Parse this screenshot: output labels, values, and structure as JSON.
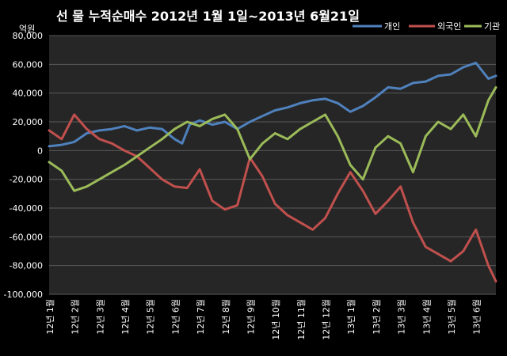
{
  "chart_data": {
    "type": "line",
    "title": "선 물 누적순매수 2012년 1월 1일~2013년 6월21일",
    "ylabel": "억원",
    "xlabel": "",
    "ylim": [
      -100000,
      80000
    ],
    "yticks": [
      "80,000",
      "60,000",
      "40,000",
      "20,000",
      "0",
      "-20,000",
      "-40,000",
      "-60,000",
      "-80,000",
      "-100,000"
    ],
    "yticks_values": [
      80000,
      60000,
      40000,
      20000,
      0,
      -20000,
      -40000,
      -60000,
      -80000,
      -100000
    ],
    "categories": [
      "12년 1월",
      "12년 2월",
      "12년 3월",
      "12년 4월",
      "12년 5월",
      "12년 6월",
      "12년 7월",
      "12년 8월",
      "12년 9월",
      "12년 10월",
      "12년 11월",
      "12년 12월",
      "13년 1월",
      "13년 2월",
      "13년 3월",
      "13년 4월",
      "13년 5월",
      "13년 6월"
    ],
    "grid": true,
    "legend_position": "top-right",
    "background": "#262626",
    "series": [
      {
        "name": "개인",
        "color": "#4f81bd",
        "values": [
          [
            0,
            3000
          ],
          [
            0.5,
            4000
          ],
          [
            1,
            6000
          ],
          [
            1.5,
            12000
          ],
          [
            2,
            14000
          ],
          [
            2.5,
            15000
          ],
          [
            3,
            17000
          ],
          [
            3.5,
            14000
          ],
          [
            4,
            16000
          ],
          [
            4.5,
            15000
          ],
          [
            5,
            8000
          ],
          [
            5.3,
            5000
          ],
          [
            5.6,
            18000
          ],
          [
            6,
            21000
          ],
          [
            6.5,
            18000
          ],
          [
            7,
            20000
          ],
          [
            7.5,
            15000
          ],
          [
            8,
            20000
          ],
          [
            8.5,
            24000
          ],
          [
            9,
            28000
          ],
          [
            9.5,
            30000
          ],
          [
            10,
            33000
          ],
          [
            10.5,
            35000
          ],
          [
            11,
            36000
          ],
          [
            11.5,
            33000
          ],
          [
            12,
            27000
          ],
          [
            12.5,
            31000
          ],
          [
            13,
            37000
          ],
          [
            13.5,
            44000
          ],
          [
            14,
            43000
          ],
          [
            14.5,
            47000
          ],
          [
            15,
            48000
          ],
          [
            15.5,
            52000
          ],
          [
            16,
            53000
          ],
          [
            16.5,
            58000
          ],
          [
            17,
            61000
          ],
          [
            17.5,
            50000
          ],
          [
            17.8,
            52000
          ]
        ]
      },
      {
        "name": "외국인",
        "color": "#c0504d",
        "values": [
          [
            0,
            14000
          ],
          [
            0.5,
            8000
          ],
          [
            1,
            25000
          ],
          [
            1.5,
            15000
          ],
          [
            2,
            8000
          ],
          [
            2.5,
            5000
          ],
          [
            3,
            0
          ],
          [
            3.5,
            -4000
          ],
          [
            4,
            -12000
          ],
          [
            4.5,
            -20000
          ],
          [
            5,
            -25000
          ],
          [
            5.5,
            -26000
          ],
          [
            6,
            -13000
          ],
          [
            6.5,
            -35000
          ],
          [
            7,
            -41000
          ],
          [
            7.5,
            -38000
          ],
          [
            8,
            -5000
          ],
          [
            8.5,
            -18000
          ],
          [
            9,
            -37000
          ],
          [
            9.5,
            -45000
          ],
          [
            10,
            -50000
          ],
          [
            10.5,
            -55000
          ],
          [
            11,
            -47000
          ],
          [
            11.5,
            -30000
          ],
          [
            12,
            -15000
          ],
          [
            12.5,
            -28000
          ],
          [
            13,
            -44000
          ],
          [
            13.5,
            -35000
          ],
          [
            14,
            -25000
          ],
          [
            14.5,
            -50000
          ],
          [
            15,
            -67000
          ],
          [
            15.5,
            -72000
          ],
          [
            16,
            -77000
          ],
          [
            16.5,
            -70000
          ],
          [
            17,
            -55000
          ],
          [
            17.5,
            -80000
          ],
          [
            17.8,
            -91000
          ]
        ]
      },
      {
        "name": "기관",
        "color": "#9bbb59",
        "values": [
          [
            0,
            -8000
          ],
          [
            0.5,
            -14000
          ],
          [
            1,
            -28000
          ],
          [
            1.5,
            -25000
          ],
          [
            2,
            -20000
          ],
          [
            2.5,
            -15000
          ],
          [
            3,
            -10000
          ],
          [
            3.5,
            -4000
          ],
          [
            4,
            2000
          ],
          [
            4.5,
            8000
          ],
          [
            5,
            15000
          ],
          [
            5.5,
            20000
          ],
          [
            6,
            17000
          ],
          [
            6.5,
            22000
          ],
          [
            7,
            25000
          ],
          [
            7.5,
            15000
          ],
          [
            8,
            -6000
          ],
          [
            8.5,
            5000
          ],
          [
            9,
            12000
          ],
          [
            9.5,
            8000
          ],
          [
            10,
            15000
          ],
          [
            10.5,
            20000
          ],
          [
            11,
            25000
          ],
          [
            11.5,
            10000
          ],
          [
            12,
            -10000
          ],
          [
            12.5,
            -20000
          ],
          [
            13,
            2000
          ],
          [
            13.5,
            10000
          ],
          [
            14,
            5000
          ],
          [
            14.5,
            -15000
          ],
          [
            15,
            10000
          ],
          [
            15.5,
            20000
          ],
          [
            16,
            15000
          ],
          [
            16.5,
            25000
          ],
          [
            17,
            10000
          ],
          [
            17.5,
            35000
          ],
          [
            17.8,
            44000
          ]
        ]
      }
    ]
  }
}
